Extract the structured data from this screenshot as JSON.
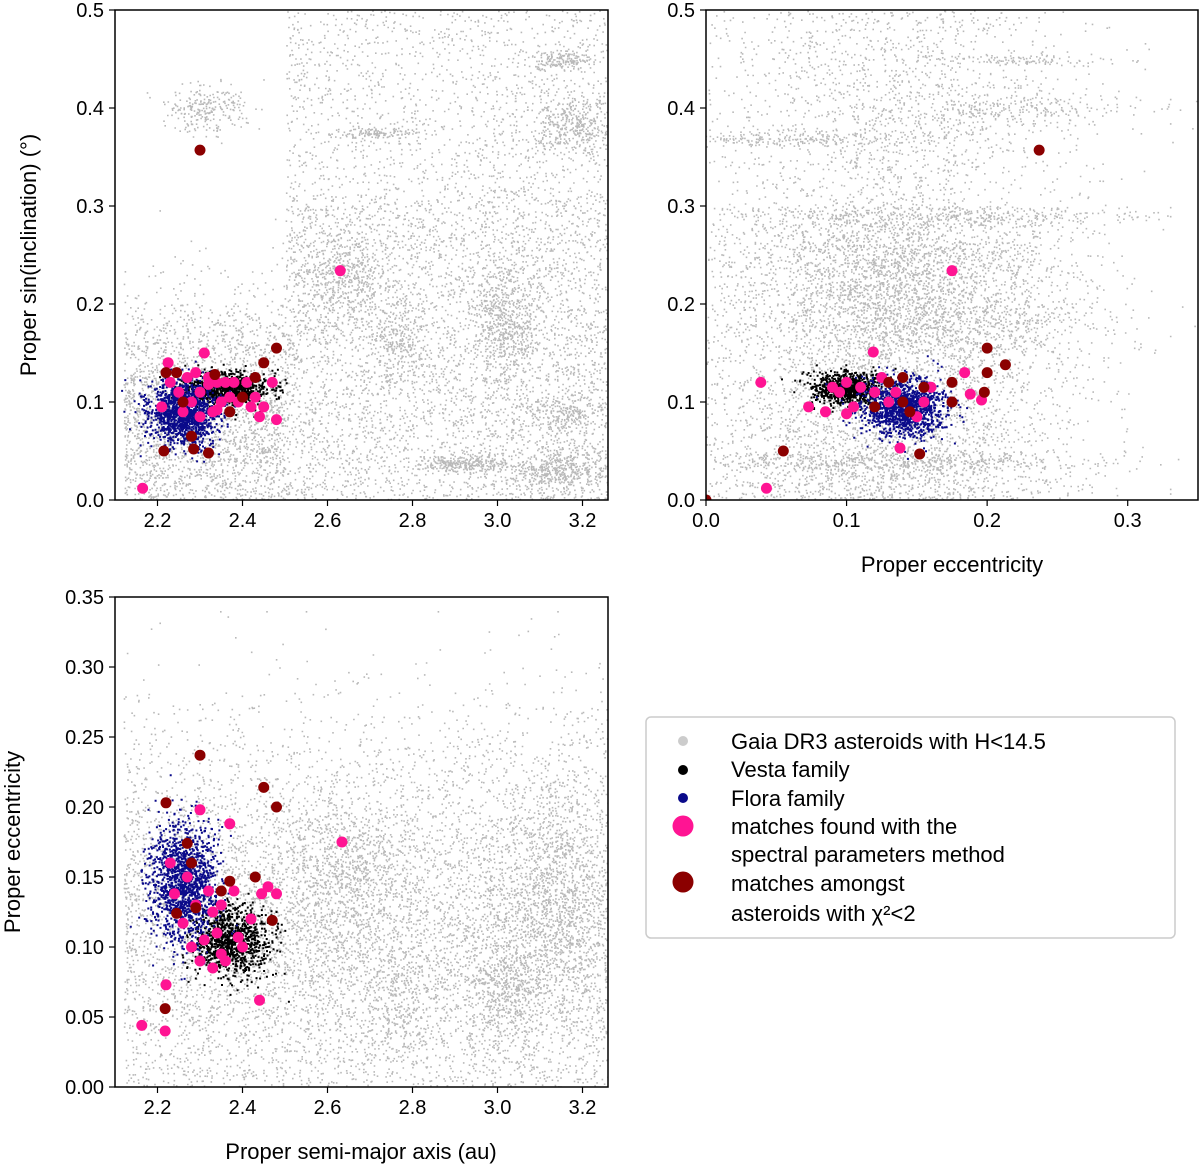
{
  "colors": {
    "background": "#808080",
    "vesta": "#000000",
    "flora": "#0a0a8a",
    "spectral": "#ff1493",
    "chi2": "#8b0000",
    "legend_bg": "#cccccc"
  },
  "legend": {
    "items": [
      {
        "label": "Gaia DR3 asteroids with H<14.5",
        "lines": [
          "Gaia DR3 asteroids with H<14.5"
        ],
        "marker": "gray-small"
      },
      {
        "label": "Vesta family",
        "lines": [
          "Vesta family"
        ],
        "marker": "black-small"
      },
      {
        "label": "Flora family",
        "lines": [
          "Flora family"
        ],
        "marker": "blue-small"
      },
      {
        "label": "matches found with the spectral parameters method",
        "lines": [
          "matches found with the",
          "spectral parameters method"
        ],
        "marker": "pink-large"
      },
      {
        "label": "matches amongst asteroids with χ²<2",
        "lines": [
          "matches amongst",
          "asteroids with χ²<2"
        ],
        "marker": "darkred-large"
      }
    ]
  },
  "chart_data": [
    {
      "type": "scatter",
      "panel": "top-left",
      "title": "",
      "xlabel": "",
      "ylabel": "Proper sin(inclination) (°)",
      "xlim": [
        2.1,
        3.26
      ],
      "ylim": [
        0.0,
        0.5
      ],
      "xticks": [
        "2.2",
        "2.4",
        "2.6",
        "2.8",
        "3.0",
        "3.2"
      ],
      "yticks": [
        "0.0",
        "0.1",
        "0.2",
        "0.3",
        "0.4",
        "0.5"
      ],
      "series": [
        {
          "name": "matches found with the spectral parameters method",
          "points": [
            [
              2.165,
              0.012
            ],
            [
              2.21,
              0.095
            ],
            [
              2.225,
              0.14
            ],
            [
              2.23,
              0.12
            ],
            [
              2.25,
              0.11
            ],
            [
              2.26,
              0.09
            ],
            [
              2.27,
              0.125
            ],
            [
              2.28,
              0.1
            ],
            [
              2.29,
              0.13
            ],
            [
              2.3,
              0.085
            ],
            [
              2.3,
              0.11
            ],
            [
              2.31,
              0.15
            ],
            [
              2.32,
              0.125
            ],
            [
              2.33,
              0.09
            ],
            [
              2.34,
              0.12
            ],
            [
              2.35,
              0.1
            ],
            [
              2.36,
              0.12
            ],
            [
              2.37,
              0.105
            ],
            [
              2.38,
              0.12
            ],
            [
              2.39,
              0.1
            ],
            [
              2.41,
              0.12
            ],
            [
              2.42,
              0.095
            ],
            [
              2.43,
              0.105
            ],
            [
              2.44,
              0.085
            ],
            [
              2.45,
              0.095
            ],
            [
              2.47,
              0.12
            ],
            [
              2.48,
              0.082
            ],
            [
              2.34,
              0.092
            ],
            [
              2.32,
              0.118
            ],
            [
              2.63,
              0.234
            ]
          ]
        },
        {
          "name": "matches amongst asteroids with χ²<2",
          "points": [
            [
              2.3,
              0.357
            ],
            [
              2.215,
              0.05
            ],
            [
              2.22,
              0.13
            ],
            [
              2.245,
              0.13
            ],
            [
              2.26,
              0.1
            ],
            [
              2.28,
              0.065
            ],
            [
              2.285,
              0.052
            ],
            [
              2.32,
              0.048
            ],
            [
              2.335,
              0.128
            ],
            [
              2.37,
              0.09
            ],
            [
              2.4,
              0.105
            ],
            [
              2.43,
              0.125
            ],
            [
              2.45,
              0.14
            ],
            [
              2.48,
              0.155
            ]
          ]
        }
      ]
    },
    {
      "type": "scatter",
      "panel": "top-right",
      "title": "",
      "xlabel": "Proper eccentricity",
      "ylabel": "",
      "xlim": [
        0.0,
        0.35
      ],
      "ylim": [
        0.0,
        0.5
      ],
      "xticks": [
        "0.0",
        "0.1",
        "0.2",
        "0.3"
      ],
      "yticks": [
        "0.0",
        "0.1",
        "0.2",
        "0.3",
        "0.4",
        "0.5"
      ],
      "series": [
        {
          "name": "matches found with the spectral parameters method",
          "points": [
            [
              0.043,
              0.012
            ],
            [
              0.039,
              0.12
            ],
            [
              0.073,
              0.095
            ],
            [
              0.09,
              0.115
            ],
            [
              0.095,
              0.11
            ],
            [
              0.1,
              0.12
            ],
            [
              0.105,
              0.095
            ],
            [
              0.11,
              0.115
            ],
            [
              0.12,
              0.11
            ],
            [
              0.125,
              0.125
            ],
            [
              0.13,
              0.1
            ],
            [
              0.135,
              0.11
            ],
            [
              0.15,
              0.085
            ],
            [
              0.155,
              0.1
            ],
            [
              0.16,
              0.115
            ],
            [
              0.175,
              0.234
            ],
            [
              0.184,
              0.13
            ],
            [
              0.188,
              0.108
            ],
            [
              0.196,
              0.102
            ],
            [
              0.138,
              0.053
            ],
            [
              0.085,
              0.09
            ],
            [
              0.1,
              0.088
            ],
            [
              0.119,
              0.151
            ]
          ]
        },
        {
          "name": "matches amongst asteroids with χ²<2",
          "points": [
            [
              0.0,
              0.0
            ],
            [
              0.055,
              0.05
            ],
            [
              0.12,
              0.095
            ],
            [
              0.13,
              0.12
            ],
            [
              0.14,
              0.1
            ],
            [
              0.145,
              0.09
            ],
            [
              0.152,
              0.047
            ],
            [
              0.175,
              0.12
            ],
            [
              0.2,
              0.155
            ],
            [
              0.2,
              0.13
            ],
            [
              0.213,
              0.138
            ],
            [
              0.237,
              0.357
            ],
            [
              0.14,
              0.125
            ],
            [
              0.155,
              0.115
            ],
            [
              0.175,
              0.1
            ],
            [
              0.198,
              0.11
            ]
          ]
        }
      ]
    },
    {
      "type": "scatter",
      "panel": "bottom-left",
      "title": "",
      "xlabel": "Proper semi-major axis (au)",
      "ylabel": "Proper eccentricity",
      "xlim": [
        2.1,
        3.26
      ],
      "ylim": [
        0.0,
        0.35
      ],
      "xticks": [
        "2.2",
        "2.4",
        "2.6",
        "2.8",
        "3.0",
        "3.2"
      ],
      "yticks": [
        "0.00",
        "0.05",
        "0.10",
        "0.15",
        "0.20",
        "0.25",
        "0.30",
        "0.35"
      ],
      "series": [
        {
          "name": "matches found with the spectral parameters method",
          "points": [
            [
              2.163,
              0.044
            ],
            [
              2.218,
              0.04
            ],
            [
              2.22,
              0.073
            ],
            [
              2.23,
              0.16
            ],
            [
              2.24,
              0.138
            ],
            [
              2.26,
              0.117
            ],
            [
              2.27,
              0.15
            ],
            [
              2.28,
              0.1
            ],
            [
              2.29,
              0.13
            ],
            [
              2.3,
              0.09
            ],
            [
              2.3,
              0.198
            ],
            [
              2.31,
              0.105
            ],
            [
              2.32,
              0.14
            ],
            [
              2.33,
              0.085
            ],
            [
              2.34,
              0.11
            ],
            [
              2.35,
              0.13
            ],
            [
              2.36,
              0.09
            ],
            [
              2.37,
              0.188
            ],
            [
              2.38,
              0.14
            ],
            [
              2.39,
              0.107
            ],
            [
              2.4,
              0.1
            ],
            [
              2.42,
              0.12
            ],
            [
              2.44,
              0.062
            ],
            [
              2.445,
              0.138
            ],
            [
              2.46,
              0.143
            ],
            [
              2.48,
              0.138
            ],
            [
              2.33,
              0.125
            ],
            [
              2.35,
              0.095
            ],
            [
              2.634,
              0.175
            ]
          ]
        },
        {
          "name": "matches amongst asteroids with χ²<2",
          "points": [
            [
              2.218,
              0.056
            ],
            [
              2.22,
              0.203
            ],
            [
              2.245,
              0.124
            ],
            [
              2.27,
              0.174
            ],
            [
              2.28,
              0.16
            ],
            [
              2.3,
              0.237
            ],
            [
              2.29,
              0.128
            ],
            [
              2.35,
              0.14
            ],
            [
              2.37,
              0.147
            ],
            [
              2.43,
              0.15
            ],
            [
              2.45,
              0.214
            ],
            [
              2.48,
              0.2
            ],
            [
              2.47,
              0.119
            ]
          ]
        }
      ]
    }
  ]
}
